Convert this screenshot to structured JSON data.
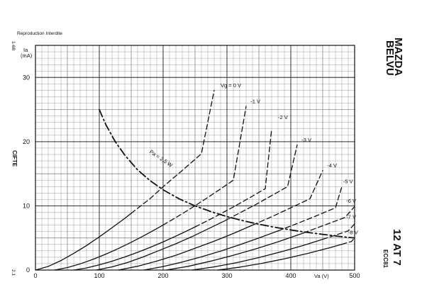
{
  "header": {
    "notice": "Reproduction Interdite"
  },
  "sheet": {
    "left_code_top": "1-68",
    "left_code_bottom": "2.1",
    "left_brand": "CIFTE",
    "right_brand_line1": "MAZDA",
    "right_brand_line2": "BELVU",
    "model": "12 AT 7",
    "model_alt": "ECC81"
  },
  "chart_data": {
    "type": "line",
    "title": "",
    "xlabel": "Va (V)",
    "ylabel": "Ia\n(mA)",
    "ylabel_line1": "Ia",
    "ylabel_line2": "(mA)",
    "xlim": [
      0,
      500
    ],
    "ylim": [
      0,
      35
    ],
    "x_ticks": [
      0,
      100,
      200,
      300,
      400,
      500
    ],
    "x_tick_labels": [
      "0",
      "100",
      "200",
      "300",
      "400",
      "500"
    ],
    "y_ticks": [
      0,
      10,
      20,
      30
    ],
    "y_tick_labels": [
      "0",
      "10",
      "20",
      "30"
    ],
    "grid": true,
    "minor_grid_x_step": 10,
    "minor_grid_y_step": 1,
    "series": [
      {
        "name": "Vg = 0 V",
        "dashed_above_x": 150,
        "label_x": 290,
        "label_y": 28.5,
        "x": [
          0,
          20,
          40,
          60,
          80,
          100,
          120,
          140,
          160,
          180,
          200,
          220,
          240,
          260,
          280
        ],
        "y": [
          0,
          0.57,
          1.48,
          2.6,
          3.82,
          5.17,
          6.6,
          8.06,
          9.62,
          11.16,
          12.98,
          14.67,
          16.38,
          18.12,
          28.0
        ]
      },
      {
        "name": "-1 V",
        "dashed_above_x": 200,
        "label_x": 337,
        "label_y": 26.0,
        "x": [
          30,
          50,
          70,
          90,
          110,
          130,
          150,
          170,
          190,
          210,
          230,
          250,
          270,
          290,
          310,
          330
        ],
        "y": [
          0,
          0.39,
          0.96,
          1.67,
          2.47,
          3.36,
          4.33,
          5.36,
          6.45,
          7.59,
          8.78,
          10.02,
          11.31,
          12.64,
          14.0,
          25.5
        ]
      },
      {
        "name": "-2 V",
        "dashed_above_x": 250,
        "label_x": 380,
        "label_y": 23.5,
        "x": [
          60,
          80,
          100,
          120,
          140,
          160,
          180,
          200,
          220,
          240,
          260,
          280,
          300,
          320,
          340,
          360,
          370
        ],
        "y": [
          0,
          0.33,
          0.81,
          1.38,
          2.04,
          2.76,
          3.55,
          4.39,
          5.29,
          6.23,
          7.21,
          8.23,
          9.29,
          10.38,
          11.52,
          12.68,
          22.0
        ]
      },
      {
        "name": "-3 V",
        "dashed_above_x": 300,
        "label_x": 417,
        "label_y": 20.0,
        "x": [
          95,
          120,
          145,
          170,
          195,
          220,
          245,
          270,
          295,
          320,
          345,
          370,
          395,
          410
        ],
        "y": [
          0,
          0.5,
          1.2,
          2.1,
          3.1,
          4.1,
          5.2,
          6.4,
          7.6,
          8.9,
          10.2,
          11.6,
          13.0,
          19.5
        ]
      },
      {
        "name": "-4 V",
        "dashed_above_x": 340,
        "label_x": 457,
        "label_y": 16.0,
        "x": [
          130,
          160,
          190,
          220,
          250,
          280,
          310,
          340,
          370,
          400,
          430,
          450
        ],
        "y": [
          0,
          0.6,
          1.4,
          2.3,
          3.4,
          4.5,
          5.7,
          7.0,
          8.3,
          9.7,
          11.1,
          15.5
        ]
      },
      {
        "name": "-5 V",
        "dashed_above_x": 380,
        "label_x": 482,
        "label_y": 13.5,
        "x": [
          170,
          200,
          230,
          260,
          290,
          320,
          350,
          380,
          410,
          440,
          470,
          480
        ],
        "y": [
          0,
          0.55,
          1.25,
          2.05,
          2.95,
          3.95,
          5.0,
          6.1,
          7.25,
          8.45,
          9.7,
          13.0
        ]
      },
      {
        "name": "-6 V",
        "dashed_above_x": 420,
        "label_x": 487,
        "label_y": 10.5,
        "x": [
          205,
          240,
          275,
          310,
          345,
          380,
          415,
          450,
          485,
          500
        ],
        "y": [
          0,
          0.6,
          1.4,
          2.3,
          3.3,
          4.4,
          5.6,
          6.9,
          8.2,
          9.9
        ]
      },
      {
        "name": "-7 V",
        "dashed_above_x": 450,
        "label_x": 487,
        "label_y": 8.0,
        "x": [
          245,
          280,
          315,
          350,
          385,
          420,
          455,
          490,
          500
        ],
        "y": [
          0,
          0.5,
          1.15,
          1.95,
          2.85,
          3.85,
          4.95,
          6.1,
          7.2
        ]
      },
      {
        "name": "-8 V",
        "dashed_above_x": 480,
        "label_x": 490,
        "label_y": 5.6,
        "x": [
          285,
          320,
          355,
          390,
          425,
          460,
          495,
          500
        ],
        "y": [
          0,
          0.45,
          1.05,
          1.75,
          2.55,
          3.45,
          4.45,
          5.0
        ]
      }
    ],
    "load_line": {
      "name": "Pa = 2,5 W",
      "label_x": 178,
      "label_y": 18.3,
      "x": [
        100,
        110,
        125,
        140,
        160,
        180,
        200,
        225,
        250,
        275,
        300,
        325,
        350,
        375,
        400,
        425,
        450,
        475,
        500
      ],
      "y": [
        25.0,
        22.7,
        20.0,
        17.9,
        15.6,
        13.9,
        12.5,
        11.1,
        10.0,
        9.1,
        8.33,
        7.69,
        7.14,
        6.67,
        6.25,
        5.88,
        5.56,
        5.26,
        5.0
      ]
    }
  }
}
